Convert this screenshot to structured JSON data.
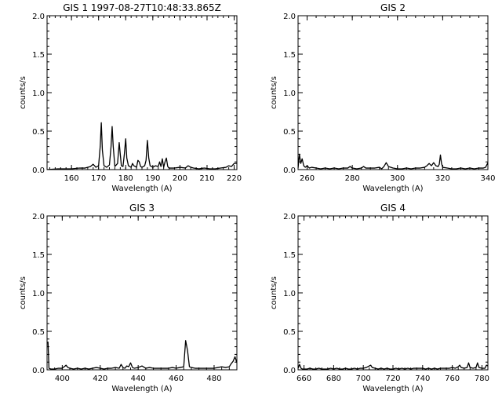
{
  "figure": {
    "background": "#ffffff",
    "foreground": "#000000"
  },
  "chart_data": [
    {
      "type": "line",
      "title": "GIS 1 1997-08-27T10:48:33.865Z",
      "xlabel": "Wavelength (A)",
      "ylabel": "counts/s",
      "xlim": [
        151,
        221
      ],
      "ylim": [
        0,
        2.0
      ],
      "xticks": [
        160,
        170,
        180,
        190,
        200,
        210,
        220
      ],
      "yticks": [
        0.0,
        0.5,
        1.0,
        1.5,
        2.0
      ],
      "ytick_labels": [
        "0.0",
        "0.5",
        "1.0",
        "1.5",
        "2.0"
      ],
      "grid": false,
      "series": [
        {
          "x": [
            151,
            155,
            160,
            163,
            165,
            167,
            168,
            169,
            170,
            170.6,
            171.0,
            171.4,
            172,
            173,
            174,
            174.6,
            175.0,
            175.4,
            176,
            177,
            177.6,
            178.0,
            178.4,
            179,
            179.5,
            180.0,
            180.4,
            181,
            182,
            182.5,
            183,
            184,
            184.5,
            185,
            185.5,
            186,
            187,
            187.5,
            188,
            188.5,
            189,
            190,
            191,
            192,
            192.5,
            193,
            193.5,
            194,
            194.5,
            195,
            195.5,
            196,
            197,
            198,
            200,
            202,
            203,
            204,
            205,
            207,
            209,
            211,
            213,
            215,
            217,
            218,
            219,
            220,
            221
          ],
          "values": [
            0.0,
            0.01,
            0.01,
            0.02,
            0.02,
            0.04,
            0.07,
            0.03,
            0.05,
            0.3,
            0.61,
            0.25,
            0.05,
            0.03,
            0.06,
            0.3,
            0.56,
            0.3,
            0.04,
            0.08,
            0.35,
            0.2,
            0.05,
            0.04,
            0.2,
            0.4,
            0.15,
            0.05,
            0.03,
            0.08,
            0.05,
            0.03,
            0.12,
            0.1,
            0.04,
            0.03,
            0.05,
            0.12,
            0.38,
            0.15,
            0.05,
            0.03,
            0.05,
            0.04,
            0.1,
            0.04,
            0.14,
            0.03,
            0.1,
            0.15,
            0.04,
            0.02,
            0.02,
            0.02,
            0.03,
            0.02,
            0.05,
            0.03,
            0.02,
            0.01,
            0.02,
            0.01,
            0.01,
            0.02,
            0.03,
            0.05,
            0.04,
            0.08,
            0.08
          ]
        }
      ]
    },
    {
      "type": "line",
      "title": "GIS 2",
      "xlabel": "Wavelength (A)",
      "ylabel": "counts/s",
      "xlim": [
        256,
        340
      ],
      "ylim": [
        0,
        2.0
      ],
      "xticks": [
        260,
        280,
        300,
        320,
        340
      ],
      "yticks": [
        0.0,
        0.5,
        1.0,
        1.5,
        2.0
      ],
      "ytick_labels": [
        "0.0",
        "0.5",
        "1.0",
        "1.5",
        "2.0"
      ],
      "grid": false,
      "series": [
        {
          "x": [
            256,
            256.6,
            257.2,
            257.8,
            258.5,
            259.2,
            260,
            261,
            262,
            264,
            266,
            268,
            270,
            272,
            274,
            276,
            278,
            279,
            280,
            282,
            284,
            285,
            286,
            288,
            290,
            292,
            293,
            294,
            295,
            296,
            298,
            300,
            302,
            304,
            306,
            308,
            310,
            312,
            313,
            314,
            315,
            316,
            317,
            318,
            318.5,
            319,
            319.5,
            320,
            322,
            324,
            326,
            328,
            330,
            332,
            334,
            336,
            338,
            339,
            340
          ],
          "values": [
            0.02,
            0.2,
            0.08,
            0.14,
            0.05,
            0.03,
            0.05,
            0.02,
            0.03,
            0.02,
            0.01,
            0.02,
            0.01,
            0.02,
            0.01,
            0.02,
            0.02,
            0.04,
            0.02,
            0.01,
            0.02,
            0.04,
            0.02,
            0.02,
            0.02,
            0.03,
            0.01,
            0.04,
            0.09,
            0.04,
            0.02,
            0.01,
            0.01,
            0.02,
            0.01,
            0.02,
            0.02,
            0.03,
            0.05,
            0.08,
            0.05,
            0.09,
            0.05,
            0.04,
            0.07,
            0.19,
            0.08,
            0.03,
            0.02,
            0.01,
            0.01,
            0.02,
            0.01,
            0.02,
            0.01,
            0.02,
            0.02,
            0.03,
            0.09
          ]
        }
      ]
    },
    {
      "type": "line",
      "title": "GIS 3",
      "xlabel": "Wavelength (A)",
      "ylabel": "counts/s",
      "xlim": [
        392,
        492
      ],
      "ylim": [
        0,
        2.0
      ],
      "xticks": [
        400,
        420,
        440,
        460,
        480
      ],
      "yticks": [
        0.0,
        0.5,
        1.0,
        1.5,
        2.0
      ],
      "ytick_labels": [
        "0.0",
        "0.5",
        "1.0",
        "1.5",
        "2.0"
      ],
      "grid": false,
      "series": [
        {
          "x": [
            392,
            392.5,
            393,
            394,
            396,
            398,
            400,
            401,
            402,
            403,
            404,
            406,
            408,
            410,
            412,
            414,
            416,
            418,
            420,
            422,
            424,
            426,
            428,
            430,
            431,
            432,
            433,
            434,
            435,
            436,
            437,
            438,
            440,
            442,
            444,
            446,
            448,
            450,
            452,
            454,
            456,
            458,
            460,
            462,
            464,
            465,
            466,
            467,
            468,
            470,
            472,
            474,
            476,
            478,
            480,
            482,
            484,
            486,
            488,
            489,
            490,
            491,
            492
          ],
          "values": [
            0.35,
            0.36,
            0.02,
            0.01,
            0.01,
            0.02,
            0.02,
            0.04,
            0.06,
            0.03,
            0.02,
            0.01,
            0.02,
            0.01,
            0.02,
            0.01,
            0.02,
            0.03,
            0.02,
            0.01,
            0.02,
            0.02,
            0.03,
            0.02,
            0.07,
            0.03,
            0.02,
            0.05,
            0.04,
            0.09,
            0.03,
            0.02,
            0.03,
            0.05,
            0.02,
            0.03,
            0.02,
            0.02,
            0.02,
            0.02,
            0.02,
            0.03,
            0.02,
            0.03,
            0.04,
            0.38,
            0.25,
            0.04,
            0.03,
            0.02,
            0.02,
            0.02,
            0.02,
            0.02,
            0.02,
            0.03,
            0.04,
            0.03,
            0.04,
            0.08,
            0.11,
            0.17,
            0.09
          ]
        }
      ]
    },
    {
      "type": "line",
      "title": "GIS 4",
      "xlabel": "Wavelength (A)",
      "ylabel": "counts/s",
      "xlim": [
        656,
        784
      ],
      "ylim": [
        0,
        2.0
      ],
      "xticks": [
        660,
        680,
        700,
        720,
        740,
        760,
        780
      ],
      "yticks": [
        0.0,
        0.5,
        1.0,
        1.5,
        2.0
      ],
      "ytick_labels": [
        "0.0",
        "0.5",
        "1.0",
        "1.5",
        "2.0"
      ],
      "grid": false,
      "series": [
        {
          "x": [
            656,
            657,
            658,
            659,
            660,
            662,
            664,
            666,
            668,
            670,
            672,
            674,
            676,
            678,
            680,
            682,
            684,
            686,
            688,
            690,
            692,
            694,
            696,
            698,
            700,
            702,
            704,
            705,
            706,
            708,
            710,
            712,
            714,
            716,
            718,
            720,
            722,
            724,
            726,
            728,
            730,
            732,
            734,
            736,
            738,
            740,
            742,
            744,
            746,
            748,
            750,
            752,
            754,
            756,
            758,
            760,
            762,
            764,
            765,
            766,
            768,
            770,
            771,
            772,
            774,
            776,
            777,
            778,
            780,
            782,
            783,
            784
          ],
          "values": [
            0.02,
            0.07,
            0.02,
            0.01,
            0.01,
            0.01,
            0.02,
            0.01,
            0.01,
            0.02,
            0.01,
            0.01,
            0.01,
            0.02,
            0.01,
            0.02,
            0.01,
            0.01,
            0.02,
            0.01,
            0.01,
            0.02,
            0.01,
            0.02,
            0.02,
            0.03,
            0.05,
            0.06,
            0.03,
            0.02,
            0.01,
            0.02,
            0.01,
            0.02,
            0.01,
            0.01,
            0.02,
            0.01,
            0.02,
            0.01,
            0.02,
            0.01,
            0.02,
            0.02,
            0.02,
            0.02,
            0.01,
            0.02,
            0.01,
            0.02,
            0.01,
            0.02,
            0.02,
            0.02,
            0.02,
            0.03,
            0.02,
            0.04,
            0.06,
            0.03,
            0.02,
            0.03,
            0.09,
            0.03,
            0.02,
            0.03,
            0.09,
            0.03,
            0.02,
            0.02,
            0.06,
            0.05
          ]
        }
      ]
    }
  ]
}
